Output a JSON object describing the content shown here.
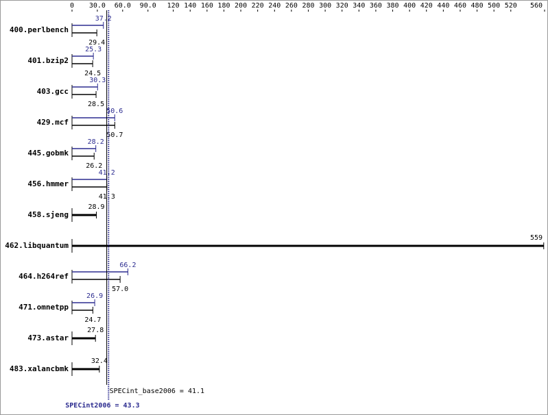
{
  "chart_data": {
    "type": "bar",
    "orientation": "horizontal",
    "categories": [
      "400.perlbench",
      "401.bzip2",
      "403.gcc",
      "429.mcf",
      "445.gobmk",
      "456.hmmer",
      "458.sjeng",
      "462.libquantum",
      "464.h264ref",
      "471.omnetpp",
      "473.astar",
      "483.xalancbmk"
    ],
    "series": [
      {
        "color": "#2b2b8f",
        "values": [
          37.2,
          25.3,
          30.3,
          50.6,
          28.2,
          41.2,
          null,
          null,
          66.2,
          26.9,
          null,
          null
        ]
      },
      {
        "color": "#000000",
        "values": [
          29.4,
          24.5,
          28.5,
          50.7,
          26.2,
          41.3,
          28.9,
          559,
          57.0,
          24.7,
          27.8,
          32.4
        ],
        "value_labels": [
          "29.4",
          "24.5",
          "28.5",
          "50.7",
          "26.2",
          "41.3",
          "28.9",
          "559",
          "57.0",
          "24.7",
          "27.8",
          "32.4"
        ]
      }
    ],
    "xlim": [
      0,
      560
    ],
    "xticks": [
      0,
      {
        "value": 30,
        "label": "30.0"
      },
      {
        "value": 60,
        "label": "60.0"
      },
      {
        "value": 90,
        "label": "90.0"
      },
      120,
      140,
      160,
      180,
      200,
      220,
      240,
      260,
      280,
      300,
      320,
      340,
      360,
      380,
      400,
      420,
      440,
      460,
      480,
      500,
      520,
      560
    ],
    "summary": [
      {
        "label": "SPECint_base2006 = 41.1",
        "value": 41.1,
        "color": "#000000"
      },
      {
        "label": "SPECint2006 = 43.3",
        "value": 43.3,
        "color": "#2b2b8f"
      }
    ]
  }
}
